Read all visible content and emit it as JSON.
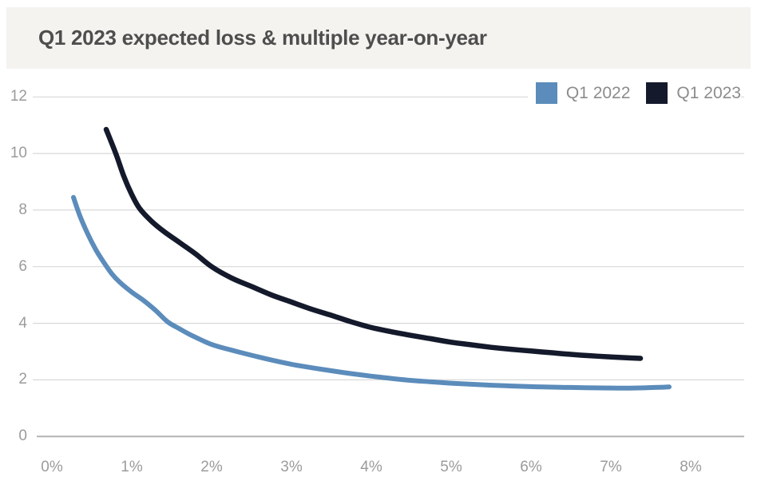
{
  "header": {
    "title": "Q1 2023 expected loss & multiple year-on-year"
  },
  "legend": {
    "items": [
      {
        "label": "Q1 2022",
        "color": "#5b8cbb"
      },
      {
        "label": "Q1 2023",
        "color": "#141a2b"
      }
    ]
  },
  "colors": {
    "band_background": "#f4f3f0",
    "title_text": "#4e4e4e",
    "gridline": "#d8d8d8",
    "zero_gridline": "#b3b3b3",
    "tick_text": "#9b9b9b",
    "legend_text": "#8c8c8c",
    "series_q1_2022": "#5b8cbb",
    "series_q1_2023": "#141a2b"
  },
  "chart_data": {
    "type": "line",
    "title": "Q1 2023 expected loss & multiple year-on-year",
    "xlabel": "",
    "ylabel": "",
    "xlim": [
      0,
      8
    ],
    "ylim": [
      0,
      12
    ],
    "x_ticks": [
      0,
      1,
      2,
      3,
      4,
      5,
      6,
      7,
      8
    ],
    "x_tick_labels": [
      "0%",
      "1%",
      "2%",
      "3%",
      "4%",
      "5%",
      "6%",
      "7%",
      "8%"
    ],
    "y_ticks": [
      0,
      2,
      4,
      6,
      8,
      10,
      12
    ],
    "y_tick_labels": [
      "0",
      "2",
      "4",
      "6",
      "8",
      "10",
      "12"
    ],
    "grid": "horizontal",
    "legend_position": "top-right",
    "series": [
      {
        "name": "Q1 2022",
        "color": "#5b8cbb",
        "stroke_width": 6,
        "points": [
          [
            0.27,
            8.45
          ],
          [
            0.35,
            7.8
          ],
          [
            0.45,
            7.15
          ],
          [
            0.55,
            6.6
          ],
          [
            0.65,
            6.15
          ],
          [
            0.75,
            5.75
          ],
          [
            0.85,
            5.45
          ],
          [
            1.0,
            5.1
          ],
          [
            1.15,
            4.8
          ],
          [
            1.3,
            4.45
          ],
          [
            1.45,
            4.05
          ],
          [
            1.6,
            3.8
          ],
          [
            1.75,
            3.57
          ],
          [
            2.0,
            3.25
          ],
          [
            2.25,
            3.05
          ],
          [
            2.5,
            2.87
          ],
          [
            2.75,
            2.7
          ],
          [
            3.0,
            2.55
          ],
          [
            3.25,
            2.43
          ],
          [
            3.5,
            2.32
          ],
          [
            3.75,
            2.22
          ],
          [
            4.0,
            2.13
          ],
          [
            4.25,
            2.05
          ],
          [
            4.5,
            1.98
          ],
          [
            4.75,
            1.93
          ],
          [
            5.0,
            1.88
          ],
          [
            5.5,
            1.81
          ],
          [
            6.0,
            1.76
          ],
          [
            6.5,
            1.73
          ],
          [
            7.0,
            1.71
          ],
          [
            7.3,
            1.71
          ],
          [
            7.55,
            1.73
          ],
          [
            7.73,
            1.75
          ]
        ]
      },
      {
        "name": "Q1 2023",
        "color": "#141a2b",
        "stroke_width": 6.5,
        "points": [
          [
            0.68,
            10.85
          ],
          [
            0.8,
            10.0
          ],
          [
            0.9,
            9.2
          ],
          [
            1.0,
            8.55
          ],
          [
            1.1,
            8.05
          ],
          [
            1.25,
            7.6
          ],
          [
            1.4,
            7.25
          ],
          [
            1.6,
            6.85
          ],
          [
            1.8,
            6.45
          ],
          [
            2.0,
            6.0
          ],
          [
            2.25,
            5.6
          ],
          [
            2.5,
            5.3
          ],
          [
            2.75,
            5.0
          ],
          [
            3.0,
            4.75
          ],
          [
            3.25,
            4.5
          ],
          [
            3.5,
            4.28
          ],
          [
            3.75,
            4.05
          ],
          [
            4.0,
            3.85
          ],
          [
            4.25,
            3.7
          ],
          [
            4.5,
            3.57
          ],
          [
            4.75,
            3.45
          ],
          [
            5.0,
            3.33
          ],
          [
            5.25,
            3.24
          ],
          [
            5.5,
            3.15
          ],
          [
            5.75,
            3.08
          ],
          [
            6.0,
            3.02
          ],
          [
            6.25,
            2.96
          ],
          [
            6.5,
            2.9
          ],
          [
            6.75,
            2.85
          ],
          [
            7.0,
            2.81
          ],
          [
            7.2,
            2.78
          ],
          [
            7.37,
            2.76
          ]
        ]
      }
    ]
  }
}
